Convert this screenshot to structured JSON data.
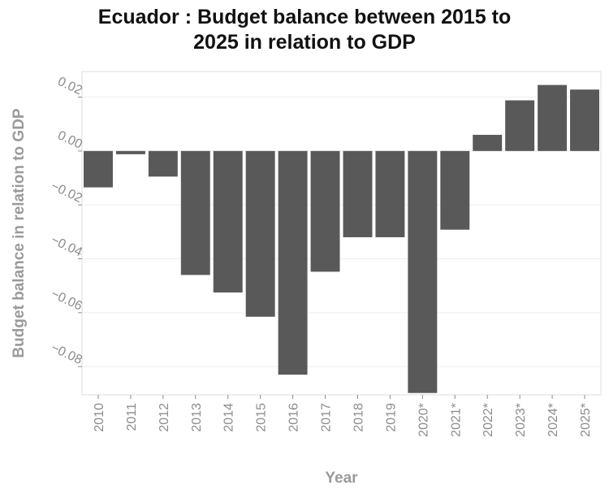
{
  "chart_data": {
    "type": "bar",
    "title_line1": "Ecuador : Budget balance between 2015 to",
    "title_line2": "2025 in relation to GDP",
    "xlabel": "Year",
    "ylabel": "Budget balance in relation to GDP",
    "categories": [
      "2010",
      "2011",
      "2012",
      "2013",
      "2014",
      "2015",
      "2016",
      "2017",
      "2018",
      "2019",
      "2020*",
      "2021*",
      "2022*",
      "2023*",
      "2024*",
      "2025*"
    ],
    "values": [
      -0.0135,
      -0.0012,
      -0.0095,
      -0.046,
      -0.0525,
      -0.0615,
      -0.083,
      -0.0448,
      -0.032,
      -0.032,
      -0.0898,
      -0.0292,
      0.006,
      0.0188,
      0.0245,
      0.0228
    ],
    "yticks": [
      0.02,
      0.0,
      -0.02,
      -0.04,
      -0.06,
      -0.08
    ],
    "ytick_labels": [
      "0.02",
      "0.00",
      "−0.02",
      "−0.04",
      "−0.06",
      "−0.08"
    ],
    "ylim": [
      -0.0905,
      0.0295
    ],
    "bar_color": "#595959",
    "grid": true
  }
}
